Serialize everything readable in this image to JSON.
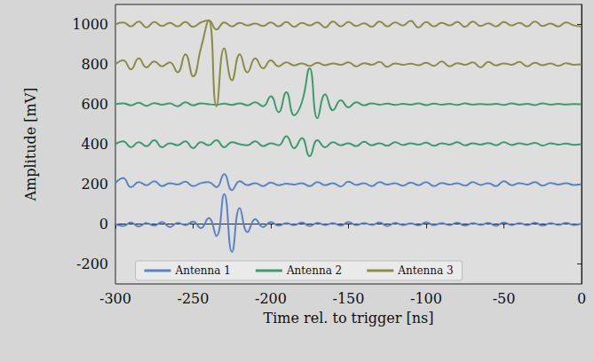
{
  "chart_data": {
    "type": "line",
    "xlabel": "Time rel. to trigger [ns]",
    "ylabel": "Amplitude [mV]",
    "xlim": [
      -300,
      0
    ],
    "xticks": [
      -300,
      -250,
      -200,
      -150,
      -100,
      -50,
      0
    ],
    "ylim": [
      -300,
      1100
    ],
    "yticks": [
      -200,
      0,
      200,
      400,
      600,
      800,
      1000
    ],
    "grid": false,
    "legend": "lower center",
    "x": [
      -300,
      -295,
      -290,
      -285,
      -280,
      -275,
      -270,
      -265,
      -260,
      -255,
      -250,
      -245,
      -240,
      -235,
      -230,
      -225,
      -220,
      -215,
      -210,
      -205,
      -200,
      -195,
      -190,
      -185,
      -180,
      -175,
      -170,
      -165,
      -160,
      -155,
      -150,
      -145,
      -140,
      -135,
      -130,
      -125,
      -120,
      -115,
      -110,
      -105,
      -100,
      -95,
      -90,
      -85,
      -80,
      -75,
      -70,
      -65,
      -60,
      -55,
      -50,
      -45,
      -40,
      -35,
      -30,
      -25,
      -20,
      -15,
      -10,
      -5,
      0
    ],
    "series": [
      {
        "name": "Antenna 1",
        "color": "#5b84c4",
        "values": [
          0,
          -10,
          8,
          -12,
          5,
          -8,
          10,
          -15,
          6,
          -5,
          12,
          -20,
          30,
          -60,
          150,
          -140,
          80,
          -40,
          25,
          -15,
          10,
          -8,
          5,
          -6,
          8,
          -10,
          6,
          -5,
          4,
          -8,
          10,
          -6,
          5,
          -4,
          8,
          -10,
          6,
          -5,
          3,
          -7,
          9,
          -6,
          4,
          -5,
          7,
          -8,
          5,
          -4,
          6,
          -9,
          8,
          -5,
          4,
          -6,
          7,
          -8,
          5,
          -4,
          6,
          -5,
          2
        ]
      },
      {
        "name": "Antenna 1",
        "color": "#5b84c4",
        "values": [
          205,
          230,
          185,
          210,
          195,
          215,
          190,
          205,
          198,
          212,
          190,
          205,
          210,
          185,
          250,
          170,
          215,
          195,
          205,
          190,
          208,
          195,
          202,
          198,
          205,
          190,
          210,
          195,
          205,
          188,
          212,
          196,
          204,
          190,
          210,
          198,
          205,
          192,
          208,
          195,
          210,
          190,
          206,
          198,
          204,
          192,
          210,
          196,
          205,
          190,
          215,
          195,
          205,
          198,
          210,
          192,
          206,
          198,
          204,
          196,
          200
        ]
      },
      {
        "name": "Antenna 2",
        "color": "#3f9a6e",
        "values": [
          400,
          415,
          385,
          410,
          390,
          420,
          385,
          405,
          395,
          415,
          380,
          410,
          395,
          420,
          385,
          410,
          400,
          395,
          415,
          390,
          405,
          395,
          440,
          380,
          430,
          340,
          420,
          385,
          410,
          395,
          405,
          390,
          412,
          395,
          405,
          392,
          410,
          396,
          404,
          398,
          408,
          392,
          405,
          398,
          410,
          394,
          404,
          398,
          406,
          395,
          410,
          396,
          404,
          398,
          407,
          393,
          405,
          398,
          403,
          397,
          400
        ]
      },
      {
        "name": "Antenna 2",
        "color": "#3f9a6e",
        "values": [
          600,
          605,
          595,
          608,
          592,
          606,
          598,
          604,
          590,
          610,
          595,
          605,
          600,
          598,
          603,
          597,
          605,
          595,
          610,
          590,
          640,
          560,
          660,
          545,
          610,
          780,
          530,
          650,
          570,
          620,
          585,
          610,
          595,
          605,
          598,
          603,
          597,
          602,
          598,
          604,
          596,
          603,
          598,
          602,
          597,
          604,
          598,
          601,
          599,
          602,
          597,
          604,
          598,
          602,
          596,
          605,
          598,
          602,
          599,
          601,
          600
        ]
      },
      {
        "name": "Antenna 3",
        "color": "#8a8c48",
        "values": [
          800,
          820,
          775,
          830,
          785,
          815,
          790,
          810,
          760,
          850,
          740,
          880,
          1020,
          590,
          880,
          720,
          850,
          760,
          830,
          780,
          820,
          790,
          810,
          795,
          805,
          792,
          808,
          796,
          804,
          798,
          810,
          790,
          806,
          798,
          812,
          788,
          805,
          798,
          803,
          796,
          808,
          792,
          815,
          790,
          806,
          798,
          810,
          785,
          812,
          795,
          805,
          798,
          812,
          790,
          808,
          796,
          804,
          792,
          806,
          798,
          800
        ]
      },
      {
        "name": "Antenna 3",
        "color": "#8a8c48",
        "values": [
          1000,
          1010,
          990,
          1015,
          985,
          1012,
          992,
          1008,
          990,
          1012,
          988,
          1010,
          1020,
          975,
          1010,
          990,
          1008,
          995,
          1005,
          992,
          1010,
          990,
          1012,
          988,
          1008,
          995,
          1010,
          985,
          1015,
          990,
          1012,
          992,
          1006,
          988,
          1015,
          990,
          1010,
          995,
          1018,
          985,
          1012,
          990,
          1008,
          995,
          1012,
          988,
          1015,
          992,
          1006,
          990,
          1012,
          995,
          1008,
          990,
          1015,
          992,
          1005,
          990,
          1010,
          995,
          990
        ]
      }
    ]
  }
}
